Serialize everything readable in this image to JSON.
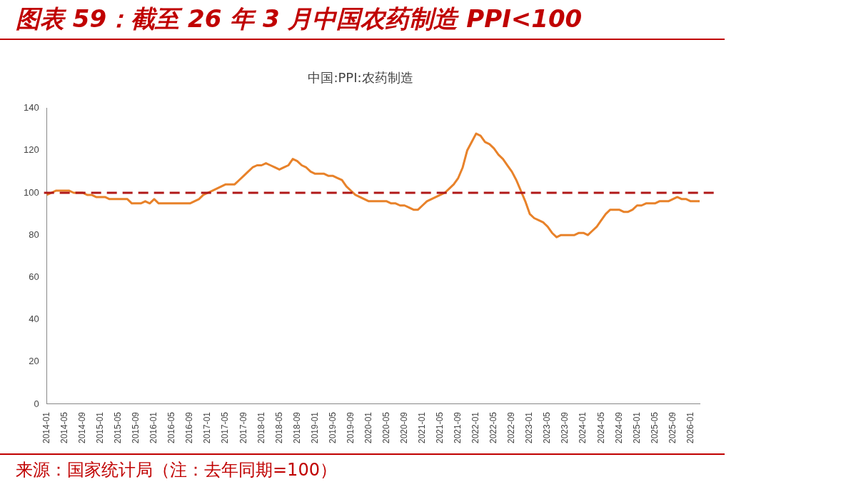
{
  "chart_data": {
    "type": "line",
    "title": "图表 59：截至 26 年 3 月中国农药制造 PPI<100",
    "subtitle": "中国:PPI:农药制造",
    "categories": [
      "2014-01",
      null,
      null,
      null,
      "2014-05",
      null,
      null,
      null,
      "2014-09",
      null,
      null,
      null,
      "2015-01",
      null,
      null,
      null,
      "2015-05",
      null,
      null,
      null,
      "2015-09",
      null,
      null,
      null,
      "2016-01",
      null,
      null,
      null,
      "2016-05",
      null,
      null,
      null,
      "2016-09",
      null,
      null,
      null,
      "2017-01",
      null,
      null,
      null,
      "2017-05",
      null,
      null,
      null,
      "2017-09",
      null,
      null,
      null,
      "2018-01",
      null,
      null,
      null,
      "2018-05",
      null,
      null,
      null,
      "2018-09",
      null,
      null,
      null,
      "2019-01",
      null,
      null,
      null,
      "2019-05",
      null,
      null,
      null,
      "2019-09",
      null,
      null,
      null,
      "2020-01",
      null,
      null,
      null,
      "2020-05",
      null,
      null,
      null,
      "2020-09",
      null,
      null,
      null,
      "2021-01",
      null,
      null,
      null,
      "2021-05",
      null,
      null,
      null,
      "2021-09",
      null,
      null,
      null,
      "2022-01",
      null,
      null,
      null,
      "2022-05",
      null,
      null,
      null,
      "2022-09",
      null,
      null,
      null,
      "2023-01",
      null,
      null,
      null,
      "2023-05",
      null,
      null,
      null,
      "2023-09",
      null,
      null,
      null,
      "2024-01",
      null,
      null,
      null,
      "2024-05",
      null,
      null,
      null,
      "2024-09",
      null,
      null,
      null,
      "2025-01",
      null,
      null,
      null,
      "2025-05",
      null,
      null,
      null,
      "2025-09",
      null,
      null,
      null,
      "2026-01",
      null,
      null
    ],
    "series": [
      {
        "color": "#e8822a",
        "values": [
          99,
          100,
          101,
          101,
          101,
          101,
          100,
          100,
          100,
          99,
          99,
          98,
          98,
          98,
          97,
          97,
          97,
          97,
          97,
          95,
          95,
          95,
          96,
          95,
          97,
          95,
          95,
          95,
          95,
          95,
          95,
          95,
          95,
          96,
          97,
          99,
          100,
          101,
          102,
          103,
          104,
          104,
          104,
          106,
          108,
          110,
          112,
          113,
          113,
          114,
          113,
          112,
          111,
          112,
          113,
          116,
          115,
          113,
          112,
          110,
          109,
          109,
          109,
          108,
          108,
          107,
          106,
          103,
          101,
          99,
          98,
          97,
          96,
          96,
          96,
          96,
          96,
          95,
          95,
          94,
          94,
          93,
          92,
          92,
          94,
          96,
          97,
          98,
          99,
          100,
          102,
          104,
          107,
          112,
          120,
          124,
          128,
          127,
          124,
          123,
          121,
          118,
          116,
          113,
          110,
          106,
          101,
          96,
          90,
          88,
          87,
          86,
          84,
          81,
          79,
          80,
          80,
          80,
          80,
          81,
          81,
          80,
          82,
          84,
          87,
          90,
          92,
          92,
          92,
          91,
          91,
          92,
          94,
          94,
          95,
          95,
          95,
          96,
          96,
          96,
          97,
          98,
          97,
          97,
          96,
          96,
          96
        ]
      }
    ],
    "ylim": [
      0,
      140
    ],
    "yticks": [
      0,
      20,
      40,
      60,
      80,
      100,
      120,
      140
    ],
    "ref_lines": [
      {
        "axis": "y",
        "value": 100,
        "color": "#b01818",
        "line_style": "dashed"
      }
    ],
    "annotations": [
      "来源：国家统计局（注：去年同期=100）"
    ]
  }
}
